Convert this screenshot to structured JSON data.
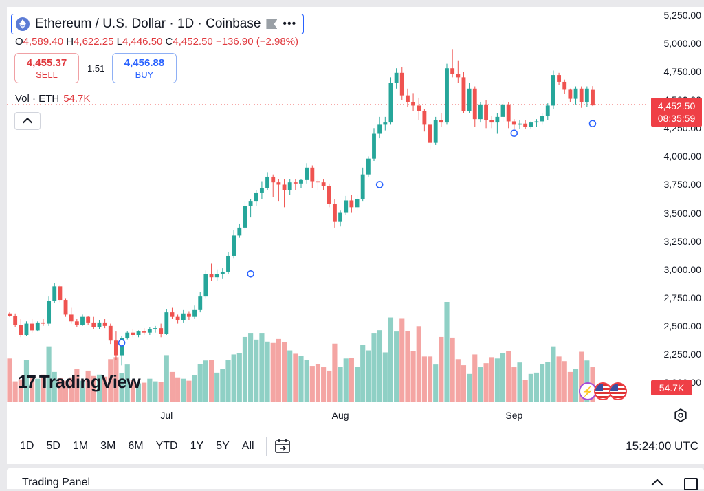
{
  "header": {
    "symbol_title": "Ethereum / U.S. Dollar · 1D · Coinbase",
    "ohlc": {
      "o_label": "O",
      "o": "4,589.40",
      "h_label": "H",
      "h": "4,622.25",
      "l_label": "L",
      "l": "4,446.50",
      "c_label": "C",
      "c": "4,452.50",
      "change": "−136.90 (−2.98%)"
    },
    "sell": {
      "price": "4,455.37",
      "label": "SELL"
    },
    "buy": {
      "price": "4,456.88",
      "label": "BUY"
    },
    "spread": "1.51",
    "volume": {
      "label": "Vol · ETH",
      "value": "54.7K"
    }
  },
  "price_tag": {
    "price": "4,452.50",
    "countdown": "08:35:59"
  },
  "volume_tag": "54.7K",
  "logo_text": "TradingView",
  "x_labels": [
    "Jul",
    "Aug",
    "Sep"
  ],
  "y_labels": [
    "5,250.00",
    "5,000.00",
    "4,750.00",
    "4,500.00",
    "4,250.00",
    "4,000.00",
    "3,750.00",
    "3,500.00",
    "3,250.00",
    "3,000.00",
    "2,750.00",
    "2,500.00",
    "2,250.00",
    "2,000.00"
  ],
  "ranges": [
    "1D",
    "5D",
    "1M",
    "3M",
    "6M",
    "YTD",
    "1Y",
    "5Y",
    "All"
  ],
  "clock": "15:24:00 UTC",
  "panel_title": "Trading Panel",
  "colors": {
    "up": "#26a69a",
    "down": "#ef5350",
    "up_vol": "#8fd0c5",
    "down_vol": "#f4a5a3",
    "accent": "#2962ff"
  },
  "chart_data": {
    "type": "candlestick",
    "title": "Ethereum / U.S. Dollar · 1D · Coinbase",
    "ylim": [
      1950,
      5300
    ],
    "x_ticks": [
      {
        "label": "Jul",
        "index": 28
      },
      {
        "label": "Aug",
        "index": 59
      },
      {
        "label": "Sep",
        "index": 90
      }
    ],
    "candles": [
      [
        2610,
        2620,
        2580,
        2590
      ],
      [
        2590,
        2610,
        2490,
        2510
      ],
      [
        2510,
        2560,
        2400,
        2420
      ],
      [
        2420,
        2540,
        2410,
        2520
      ],
      [
        2520,
        2560,
        2440,
        2460
      ],
      [
        2460,
        2540,
        2450,
        2530
      ],
      [
        2530,
        2560,
        2500,
        2520
      ],
      [
        2520,
        2760,
        2500,
        2720
      ],
      [
        2720,
        2880,
        2700,
        2850
      ],
      [
        2850,
        2860,
        2710,
        2730
      ],
      [
        2730,
        2740,
        2580,
        2600
      ],
      [
        2600,
        2660,
        2520,
        2540
      ],
      [
        2540,
        2560,
        2490,
        2510
      ],
      [
        2510,
        2600,
        2500,
        2580
      ],
      [
        2580,
        2590,
        2510,
        2530
      ],
      [
        2530,
        2580,
        2470,
        2490
      ],
      [
        2490,
        2550,
        2470,
        2530
      ],
      [
        2530,
        2560,
        2480,
        2500
      ],
      [
        2500,
        2520,
        2340,
        2370
      ],
      [
        2370,
        2450,
        2200,
        2240
      ],
      [
        2240,
        2410,
        2150,
        2390
      ],
      [
        2390,
        2450,
        2380,
        2440
      ],
      [
        2440,
        2470,
        2400,
        2420
      ],
      [
        2420,
        2460,
        2400,
        2450
      ],
      [
        2450,
        2480,
        2420,
        2440
      ],
      [
        2440,
        2490,
        2420,
        2470
      ],
      [
        2470,
        2500,
        2440,
        2480
      ],
      [
        2480,
        2520,
        2400,
        2430
      ],
      [
        2430,
        2650,
        2420,
        2620
      ],
      [
        2620,
        2660,
        2560,
        2580
      ],
      [
        2580,
        2600,
        2520,
        2550
      ],
      [
        2550,
        2640,
        2530,
        2610
      ],
      [
        2610,
        2630,
        2550,
        2580
      ],
      [
        2580,
        2680,
        2560,
        2640
      ],
      [
        2640,
        2800,
        2620,
        2760
      ],
      [
        2760,
        2990,
        2740,
        2960
      ],
      [
        2960,
        3050,
        2900,
        2930
      ],
      [
        2930,
        3000,
        2900,
        2960
      ],
      [
        2960,
        3010,
        2920,
        2980
      ],
      [
        2980,
        3150,
        2960,
        3120
      ],
      [
        3120,
        3350,
        3100,
        3300
      ],
      [
        3300,
        3400,
        3280,
        3370
      ],
      [
        3370,
        3600,
        3350,
        3560
      ],
      [
        3560,
        3620,
        3460,
        3600
      ],
      [
        3600,
        3700,
        3560,
        3680
      ],
      [
        3680,
        3780,
        3620,
        3720
      ],
      [
        3720,
        3860,
        3700,
        3820
      ],
      [
        3820,
        3840,
        3640,
        3770
      ],
      [
        3770,
        3800,
        3600,
        3750
      ],
      [
        3750,
        3800,
        3550,
        3700
      ],
      [
        3700,
        3800,
        3660,
        3770
      ],
      [
        3770,
        3800,
        3700,
        3760
      ],
      [
        3760,
        3800,
        3720,
        3790
      ],
      [
        3790,
        3940,
        3760,
        3900
      ],
      [
        3900,
        3920,
        3720,
        3780
      ],
      [
        3780,
        3800,
        3700,
        3770
      ],
      [
        3770,
        3800,
        3700,
        3740
      ],
      [
        3740,
        3760,
        3550,
        3580
      ],
      [
        3580,
        3620,
        3370,
        3420
      ],
      [
        3420,
        3520,
        3380,
        3500
      ],
      [
        3500,
        3650,
        3480,
        3610
      ],
      [
        3610,
        3660,
        3500,
        3550
      ],
      [
        3550,
        3660,
        3520,
        3620
      ],
      [
        3620,
        3900,
        3600,
        3840
      ],
      [
        3840,
        4000,
        3820,
        3980
      ],
      [
        3980,
        4250,
        3960,
        4200
      ],
      [
        4200,
        4350,
        4160,
        4280
      ],
      [
        4280,
        4350,
        4230,
        4300
      ],
      [
        4300,
        4700,
        4280,
        4650
      ],
      [
        4650,
        4780,
        4600,
        4740
      ],
      [
        4740,
        4790,
        4500,
        4540
      ],
      [
        4540,
        4600,
        4440,
        4480
      ],
      [
        4480,
        4560,
        4400,
        4450
      ],
      [
        4450,
        4520,
        4320,
        4400
      ],
      [
        4400,
        4420,
        4220,
        4280
      ],
      [
        4280,
        4300,
        4060,
        4120
      ],
      [
        4120,
        4350,
        4100,
        4320
      ],
      [
        4320,
        4380,
        4260,
        4300
      ],
      [
        4300,
        4820,
        4280,
        4780
      ],
      [
        4780,
        4950,
        4700,
        4730
      ],
      [
        4730,
        4850,
        4650,
        4700
      ],
      [
        4700,
        4750,
        4380,
        4400
      ],
      [
        4400,
        4650,
        4380,
        4600
      ],
      [
        4600,
        4620,
        4260,
        4330
      ],
      [
        4330,
        4480,
        4300,
        4460
      ],
      [
        4460,
        4500,
        4250,
        4320
      ],
      [
        4320,
        4360,
        4250,
        4300
      ],
      [
        4300,
        4380,
        4200,
        4350
      ],
      [
        4350,
        4500,
        4300,
        4460
      ],
      [
        4460,
        4480,
        4250,
        4310
      ],
      [
        4310,
        4330,
        4240,
        4280
      ],
      [
        4280,
        4320,
        4240,
        4290
      ],
      [
        4290,
        4320,
        4240,
        4260
      ],
      [
        4260,
        4310,
        4240,
        4300
      ],
      [
        4300,
        4330,
        4260,
        4310
      ],
      [
        4310,
        4380,
        4280,
        4360
      ],
      [
        4360,
        4470,
        4320,
        4450
      ],
      [
        4450,
        4760,
        4420,
        4720
      ],
      [
        4720,
        4740,
        4630,
        4660
      ],
      [
        4660,
        4680,
        4550,
        4590
      ],
      [
        4590,
        4600,
        4480,
        4510
      ],
      [
        4510,
        4620,
        4460,
        4600
      ],
      [
        4600,
        4620,
        4430,
        4480
      ],
      [
        4480,
        4620,
        4440,
        4600
      ],
      [
        4589,
        4622,
        4446,
        4452
      ]
    ],
    "volume": [
      64,
      30,
      33,
      62,
      36,
      34,
      40,
      82,
      44,
      35,
      31,
      36,
      48,
      31,
      46,
      38,
      40,
      37,
      63,
      66,
      42,
      55,
      32,
      27,
      28,
      34,
      30,
      29,
      69,
      44,
      36,
      34,
      31,
      39,
      56,
      61,
      62,
      43,
      48,
      62,
      70,
      72,
      96,
      102,
      92,
      102,
      89,
      87,
      93,
      88,
      76,
      71,
      68,
      62,
      53,
      56,
      51,
      46,
      86,
      52,
      64,
      65,
      52,
      84,
      76,
      102,
      106,
      73,
      125,
      104,
      123,
      105,
      75,
      112,
      67,
      67,
      55,
      96,
      148,
      95,
      63,
      54,
      41,
      70,
      51,
      57,
      66,
      64,
      72,
      75,
      51,
      58,
      32,
      41,
      43,
      56,
      59,
      82,
      67,
      60,
      44,
      48,
      74,
      61,
      51
    ]
  }
}
